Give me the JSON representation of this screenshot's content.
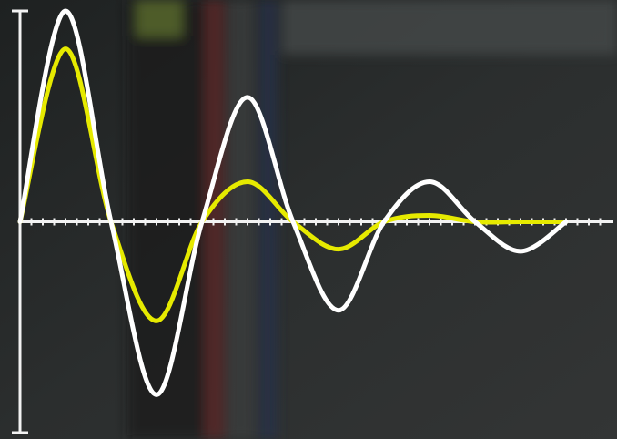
{
  "chart_data": {
    "type": "line",
    "x": [
      0,
      0.5,
      1,
      1.5,
      2,
      2.5,
      3,
      3.5,
      4,
      4.5,
      5,
      5.5,
      6
    ],
    "series": [
      {
        "color": "#ffffff",
        "values": [
          0,
          1.0,
          0,
          -0.82,
          0,
          0.59,
          0,
          -0.42,
          0,
          0.19,
          0,
          -0.14,
          0
        ]
      },
      {
        "color": "#e6ea00",
        "values": [
          0,
          0.82,
          0,
          -0.47,
          0,
          0.19,
          0,
          -0.13,
          0,
          0.03,
          0,
          0,
          0
        ]
      }
    ],
    "xlim": [
      0,
      6.4
    ],
    "ylim": [
      -1,
      1
    ],
    "yticks": [
      -1,
      1
    ],
    "xticks": [
      0.125,
      0.25,
      0.375,
      0.5,
      0.625,
      0.75,
      0.875,
      1,
      1.125,
      1.25,
      1.375,
      1.5,
      1.625,
      1.75,
      1.875,
      2,
      2.125,
      2.25,
      2.375,
      2.5,
      2.625,
      2.75,
      2.875,
      3,
      3.125,
      3.25,
      3.375,
      3.5,
      3.625,
      3.75,
      3.875,
      4,
      4.125,
      4.25,
      4.375,
      4.5,
      4.625,
      4.75,
      4.875,
      5,
      5.125,
      5.25,
      5.375,
      5.5,
      5.625,
      5.75,
      5.875,
      6,
      6.125,
      6.25,
      6.375
    ]
  }
}
